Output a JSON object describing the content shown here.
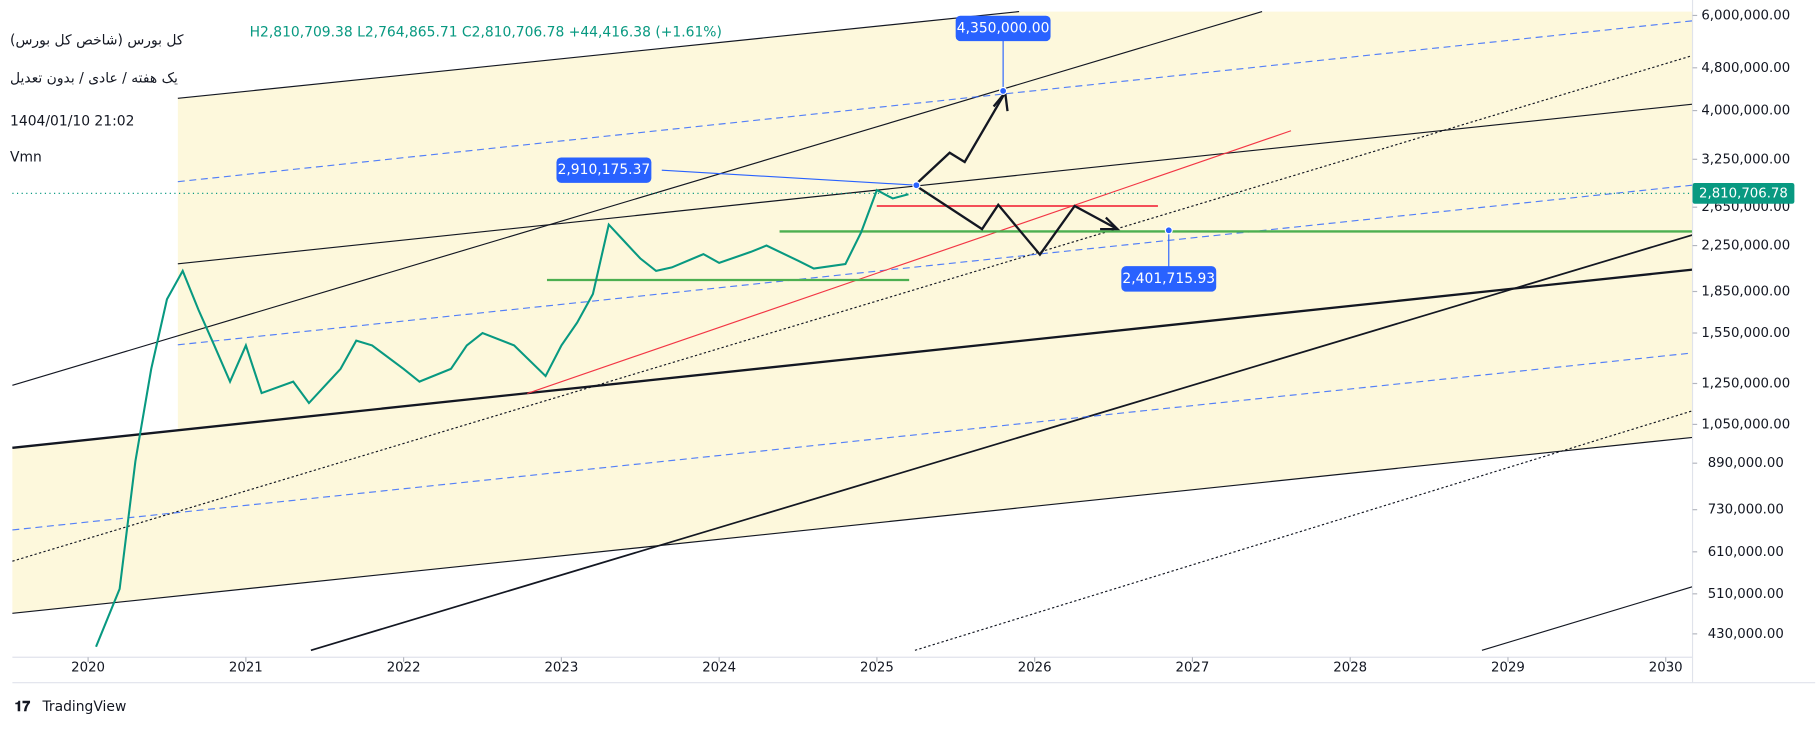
{
  "header": {
    "title": "کل بورس (شاخص کل بورس)",
    "subtitle": "یک هفته / عادی / بدون تعدیل",
    "timestamp": "1404/01/10 21:02",
    "indicator": "Vmn",
    "ohlc": "H2,810,709.38  L2,764,865.71  C2,810,706.78  +44,416.38 (+1.61%)",
    "brand": "TradingView"
  },
  "chart_data": {
    "type": "line",
    "log_scale": true,
    "color": "#089981",
    "x": [
      2020.05,
      2020.2,
      2020.3,
      2020.4,
      2020.5,
      2020.6,
      2020.7,
      2020.8,
      2020.9,
      2021.0,
      2021.1,
      2021.3,
      2021.4,
      2021.6,
      2021.7,
      2021.8,
      2022.0,
      2022.1,
      2022.3,
      2022.4,
      2022.5,
      2022.7,
      2022.9,
      2023.0,
      2023.1,
      2023.2,
      2023.3,
      2023.4,
      2023.5,
      2023.6,
      2023.7,
      2023.9,
      2024.0,
      2024.2,
      2024.3,
      2024.5,
      2024.6,
      2024.8,
      2024.9,
      2025.0,
      2025.1,
      2025.2
    ],
    "values": [
      407000,
      521000,
      897000,
      1330000,
      1790000,
      2020000,
      1710000,
      1470000,
      1260000,
      1470000,
      1200000,
      1260000,
      1150000,
      1330000,
      1500000,
      1470000,
      1330000,
      1260000,
      1330000,
      1470000,
      1550000,
      1470000,
      1290000,
      1470000,
      1620000,
      1830000,
      2460000,
      2290000,
      2130000,
      2020000,
      2050000,
      2170000,
      2090000,
      2190000,
      2250000,
      2110000,
      2040000,
      2080000,
      2380000,
      2850000,
      2750000,
      2800000
    ],
    "xlim": [
      2019.52,
      2030.17
    ],
    "ylim": [
      395000,
      6100000
    ],
    "xticks": [
      2020,
      2021,
      2022,
      2023,
      2024,
      2025,
      2026,
      2027,
      2028,
      2029,
      2030
    ],
    "yticks": [
      {
        "value": 430000,
        "label": "430,000.00"
      },
      {
        "value": 510000,
        "label": "510,000.00"
      },
      {
        "value": 610000,
        "label": "610,000.00"
      },
      {
        "value": 730000,
        "label": "730,000.00"
      },
      {
        "value": 890000,
        "label": "890,000.00"
      },
      {
        "value": 1050000,
        "label": "1,050,000.00"
      },
      {
        "value": 1250000,
        "label": "1,250,000.00"
      },
      {
        "value": 1550000,
        "label": "1,550,000.00"
      },
      {
        "value": 1850000,
        "label": "1,850,000.00"
      },
      {
        "value": 2250000,
        "label": "2,250,000.00"
      },
      {
        "value": 2650000,
        "label": "2,650,000.00"
      },
      {
        "value": 3250000,
        "label": "3,250,000.00"
      },
      {
        "value": 4000000,
        "label": "4,000,000.00"
      },
      {
        "value": 4800000,
        "label": "4,800,000.00"
      },
      {
        "value": 6000000,
        "label": "6,000,000.00"
      }
    ],
    "last_price": {
      "value": 2810706.78,
      "label": "2,810,706.78"
    },
    "annotations": [
      {
        "x": 2025.8,
        "value": 4350000,
        "label": "4,350,000.00"
      },
      {
        "x": 2025.25,
        "value": 2910175.37,
        "label": "2,910,175.37"
      },
      {
        "x": 2026.85,
        "value": 2401715.93,
        "label": "2,401,715.93"
      }
    ]
  }
}
